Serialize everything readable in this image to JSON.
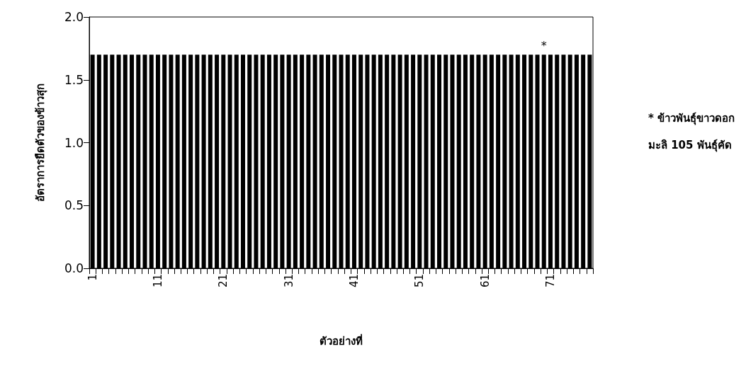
{
  "chart_data": {
    "type": "bar",
    "xlabel": "ตัวอย่างที่",
    "ylabel": "อัตราการยืดตัวของข้าวสุก",
    "categories": [
      "1",
      null,
      null,
      null,
      null,
      null,
      null,
      null,
      null,
      null,
      "11",
      null,
      null,
      null,
      null,
      null,
      null,
      null,
      null,
      null,
      "21",
      null,
      null,
      null,
      null,
      null,
      null,
      null,
      null,
      null,
      "31",
      null,
      null,
      null,
      null,
      null,
      null,
      null,
      null,
      null,
      "41",
      null,
      null,
      null,
      null,
      null,
      null,
      null,
      null,
      null,
      "51",
      null,
      null,
      null,
      null,
      null,
      null,
      null,
      null,
      null,
      "61",
      null,
      null,
      null,
      null,
      null,
      null,
      null,
      null,
      null,
      "71",
      null,
      null,
      null,
      null,
      null,
      null
    ],
    "values": [
      1.7,
      1.7,
      1.7,
      1.7,
      1.7,
      1.7,
      1.7,
      1.7,
      1.7,
      1.7,
      1.7,
      1.7,
      1.7,
      1.7,
      1.7,
      1.7,
      1.7,
      1.7,
      1.7,
      1.7,
      1.7,
      1.7,
      1.7,
      1.7,
      1.7,
      1.7,
      1.7,
      1.7,
      1.7,
      1.7,
      1.7,
      1.7,
      1.7,
      1.7,
      1.7,
      1.7,
      1.7,
      1.7,
      1.7,
      1.7,
      1.7,
      1.7,
      1.7,
      1.7,
      1.7,
      1.7,
      1.7,
      1.7,
      1.7,
      1.7,
      1.7,
      1.7,
      1.7,
      1.7,
      1.7,
      1.7,
      1.7,
      1.7,
      1.7,
      1.7,
      1.7,
      1.7,
      1.7,
      1.7,
      1.7,
      1.7,
      1.7,
      1.7,
      1.7,
      1.7,
      1.7,
      1.7,
      1.7,
      1.7,
      1.7,
      1.7,
      1.7
    ],
    "value_labels": [
      null,
      null,
      null,
      null,
      null,
      null,
      null,
      null,
      null,
      null,
      null,
      null,
      null,
      null,
      null,
      null,
      null,
      null,
      null,
      null,
      null,
      null,
      null,
      null,
      null,
      null,
      null,
      null,
      null,
      null,
      null,
      null,
      null,
      null,
      null,
      null,
      null,
      null,
      null,
      null,
      null,
      null,
      null,
      null,
      null,
      null,
      null,
      null,
      null,
      null,
      null,
      null,
      null,
      null,
      null,
      null,
      null,
      null,
      null,
      null,
      null,
      null,
      null,
      null,
      null,
      null,
      null,
      null,
      null,
      "*",
      null,
      null,
      null,
      null,
      null,
      null,
      null
    ],
    "color": "#000000",
    "ylim": [
      0,
      2
    ],
    "yticks": [
      {
        "value": 0,
        "label": "0.0"
      },
      0.5,
      {
        "value": 1,
        "label": "1.0"
      },
      1.5,
      {
        "value": 2,
        "label": "2.0"
      }
    ],
    "grid": false,
    "annotations": [
      "* ข้าวพันธุ์ขาวดอก\nมะลิ 105 พันธุ์คัด"
    ]
  }
}
